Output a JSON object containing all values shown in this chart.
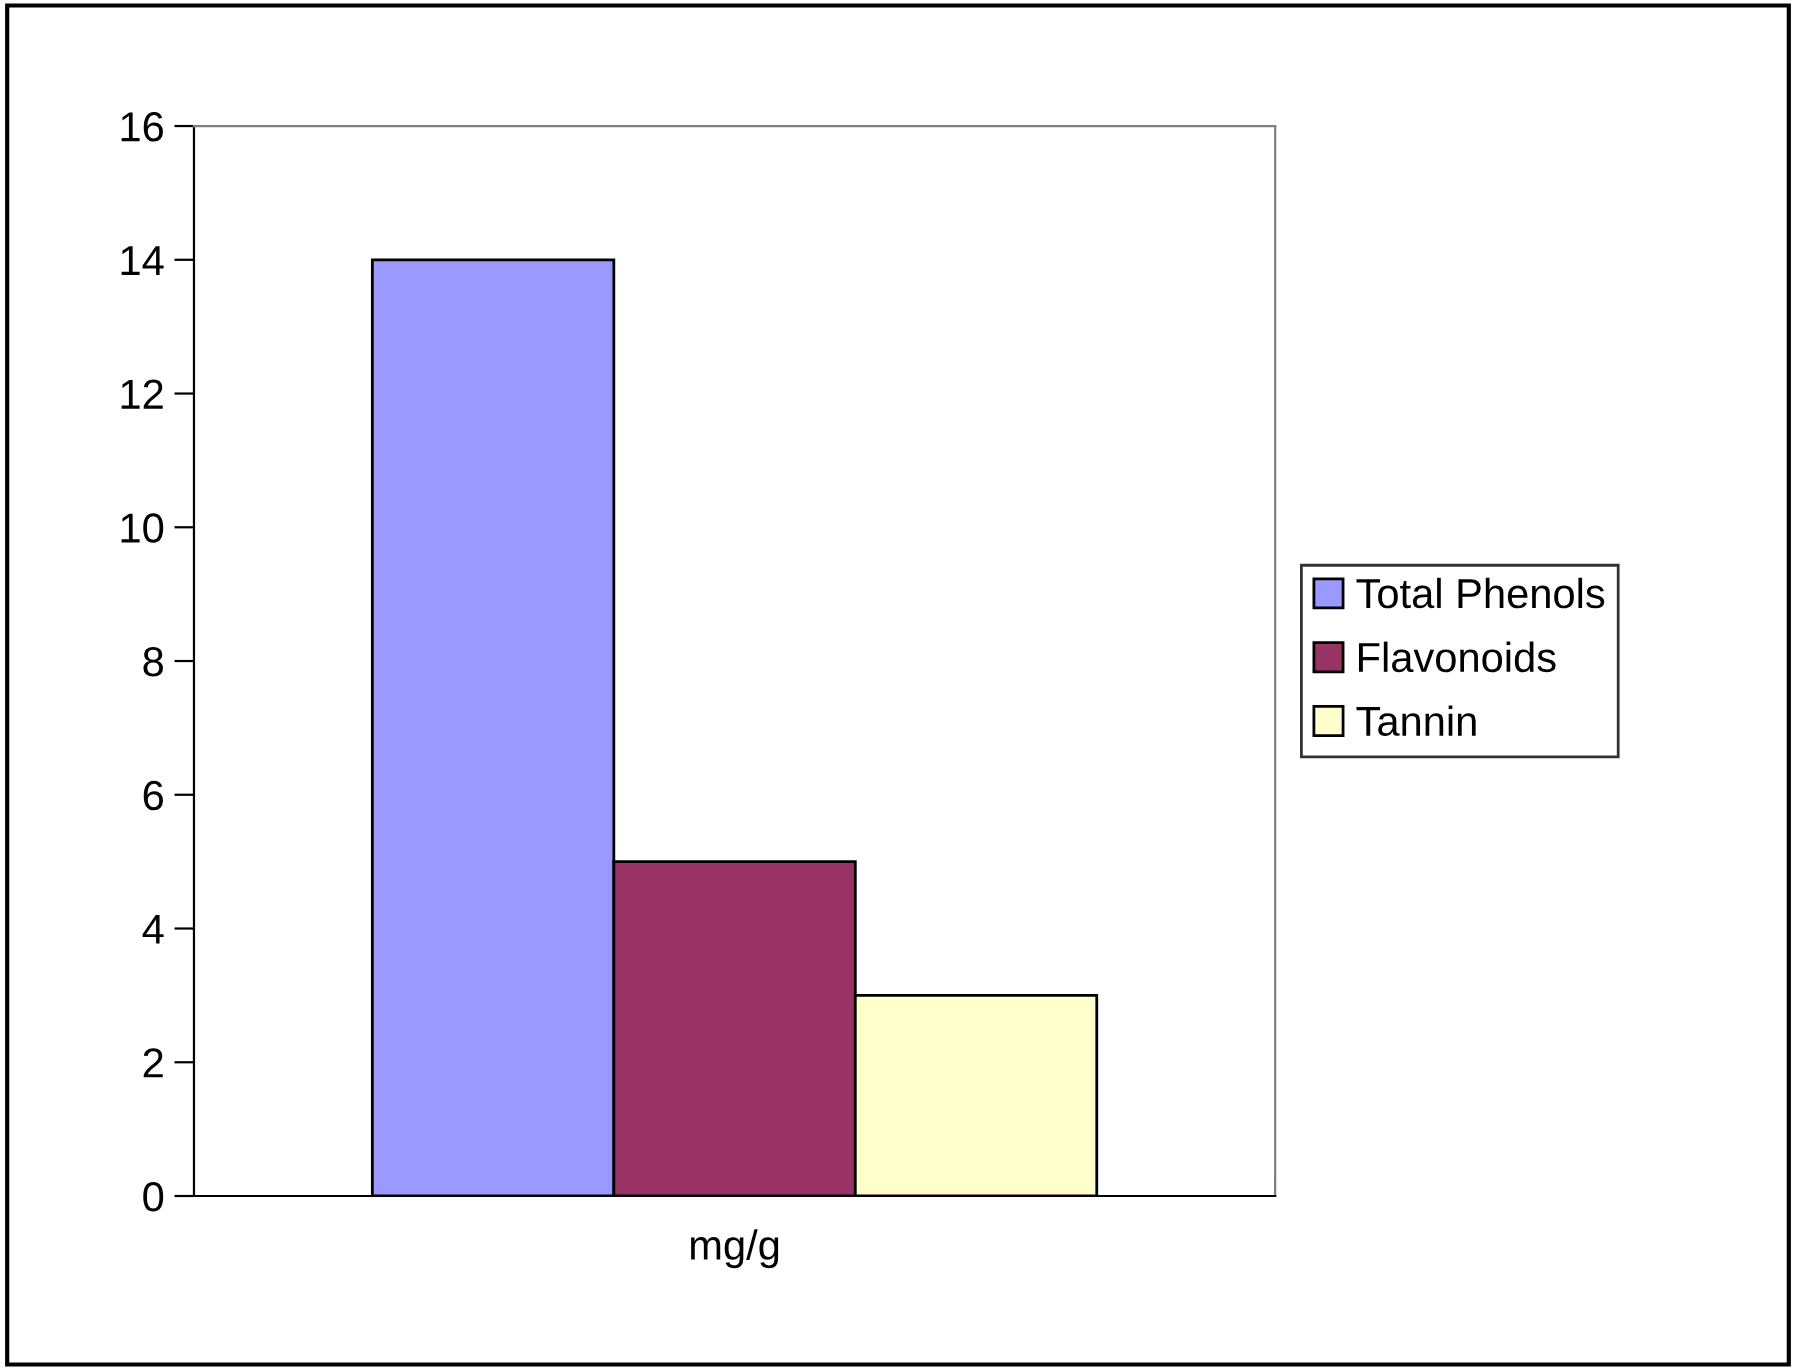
{
  "chart_data": {
    "type": "bar",
    "categories": [
      "mg/g"
    ],
    "series": [
      {
        "name": "Total Phenols",
        "color": "#9999ff",
        "values": [
          14
        ]
      },
      {
        "name": "Flavonoids",
        "color": "#993366",
        "values": [
          5
        ]
      },
      {
        "name": "Tannin",
        "color": "#ffffcc",
        "values": [
          3
        ]
      }
    ],
    "ylim": [
      0,
      16
    ],
    "yticks": [
      0,
      2,
      4,
      6,
      8,
      10,
      12,
      14,
      16
    ],
    "grid": false,
    "legend": "right"
  }
}
